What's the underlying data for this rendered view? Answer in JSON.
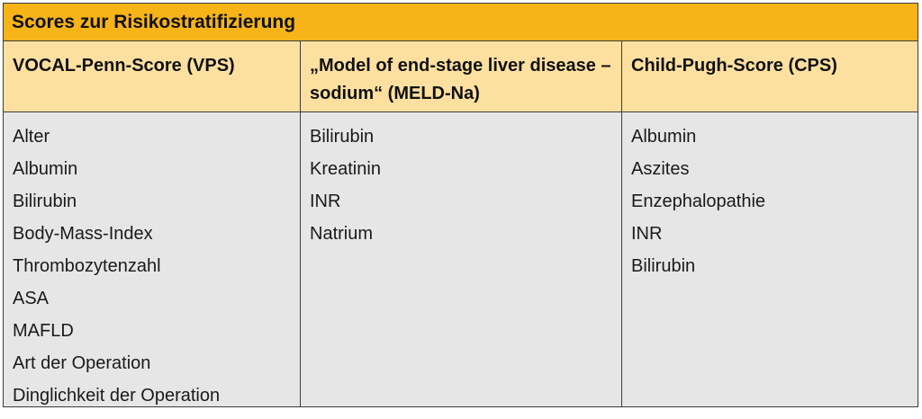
{
  "table": {
    "title": "Scores zur Risikostratifizierung",
    "columns": [
      {
        "header": "VOCAL-Penn-Score (VPS)",
        "items": [
          "Alter",
          "Albumin",
          "Bilirubin",
          "Body-Mass-Index",
          "Thrombozytenzahl",
          "ASA",
          "MAFLD",
          "Art der Operation",
          "Dinglichkeit der Operation"
        ]
      },
      {
        "header": "„Model of end-stage liver disease – sodium“ (MELD-Na)",
        "items": [
          "Bilirubin",
          "Kreatinin",
          "INR",
          "Natrium"
        ]
      },
      {
        "header": "Child-Pugh-Score (CPS)",
        "items": [
          "Albumin",
          "Aszites",
          "Enzephalopathie",
          "INR",
          "Bilirubin"
        ]
      }
    ]
  }
}
